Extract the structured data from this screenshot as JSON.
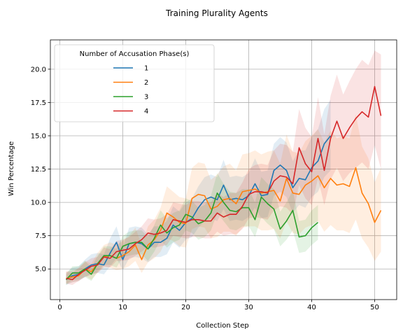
{
  "chart_data": {
    "type": "line",
    "title": "Training Plurality Agents",
    "xlabel": "Collection Step",
    "ylabel": "Win Percentage",
    "xlim": [
      -1.5,
      53.5
    ],
    "ylim": [
      2.7,
      22.2
    ],
    "xticks": [
      0,
      10,
      20,
      30,
      40,
      50
    ],
    "yticks": [
      5.0,
      7.5,
      10.0,
      12.5,
      15.0,
      17.5,
      20.0
    ],
    "xtick_labels": [
      "0",
      "10",
      "20",
      "30",
      "40",
      "50"
    ],
    "ytick_labels": [
      "5.0",
      "7.5",
      "10.0",
      "12.5",
      "15.0",
      "17.5",
      "20.0"
    ],
    "grid": true,
    "legend": {
      "title": "Number of Accusation Phase(s)",
      "placement": "top-left"
    },
    "series": [
      {
        "name": "1",
        "color": "#1f77b4",
        "x": [
          1,
          2,
          3,
          4,
          5,
          6,
          7,
          8,
          9,
          10,
          11,
          12,
          13,
          14,
          15,
          16,
          17,
          18,
          19,
          20,
          21,
          22,
          23,
          24,
          25,
          26,
          27,
          28,
          29,
          30,
          31,
          32,
          33,
          34,
          35,
          36,
          37,
          38,
          39,
          40,
          41,
          42,
          43
        ],
        "values": [
          4.2,
          4.5,
          4.6,
          5.0,
          5.3,
          5.4,
          5.3,
          6.2,
          7.0,
          5.7,
          6.9,
          7.0,
          6.9,
          6.5,
          7.0,
          7.0,
          7.3,
          8.3,
          7.9,
          8.5,
          8.8,
          9.6,
          10.2,
          10.4,
          10.2,
          11.3,
          10.2,
          10.3,
          10.2,
          10.5,
          11.4,
          10.5,
          10.6,
          12.4,
          12.8,
          12.4,
          11.1,
          11.8,
          11.7,
          12.6,
          13.1,
          14.4,
          15.0
        ],
        "lower": [
          3.8,
          4.0,
          4.1,
          4.4,
          4.6,
          4.7,
          4.6,
          5.2,
          5.8,
          4.9,
          5.8,
          5.9,
          5.8,
          5.5,
          5.9,
          5.9,
          6.1,
          7.0,
          6.6,
          7.2,
          7.4,
          8.1,
          8.6,
          8.8,
          8.6,
          9.5,
          8.6,
          8.7,
          8.6,
          8.9,
          9.6,
          8.8,
          8.9,
          10.5,
          10.8,
          10.4,
          9.2,
          9.8,
          9.6,
          10.4,
          10.8,
          11.9,
          12.4
        ],
        "upper": [
          4.7,
          5.1,
          5.2,
          5.7,
          6.1,
          6.2,
          6.1,
          7.3,
          8.2,
          6.6,
          8.1,
          8.2,
          8.1,
          7.6,
          8.2,
          8.2,
          8.6,
          9.7,
          9.3,
          10.0,
          10.3,
          11.2,
          11.9,
          12.1,
          11.9,
          13.2,
          11.9,
          12.0,
          11.9,
          12.2,
          13.3,
          12.3,
          12.4,
          14.4,
          14.9,
          14.5,
          13.1,
          13.9,
          13.9,
          14.9,
          15.5,
          17.0,
          17.7
        ]
      },
      {
        "name": "2",
        "color": "#ff7f0e",
        "x": [
          1,
          2,
          3,
          4,
          5,
          6,
          7,
          8,
          9,
          10,
          11,
          12,
          13,
          14,
          15,
          16,
          17,
          18,
          19,
          20,
          21,
          22,
          23,
          24,
          25,
          26,
          27,
          28,
          29,
          30,
          31,
          32,
          33,
          34,
          35,
          36,
          37,
          38,
          39,
          40,
          41,
          42,
          43,
          44,
          45,
          46,
          47,
          48,
          49,
          50,
          51
        ],
        "values": [
          4.3,
          4.4,
          4.5,
          5.0,
          4.8,
          5.4,
          5.9,
          6.0,
          5.8,
          6.0,
          6.3,
          6.8,
          5.7,
          6.8,
          7.2,
          7.9,
          9.2,
          8.9,
          8.5,
          8.4,
          10.3,
          10.6,
          10.5,
          9.5,
          9.7,
          10.2,
          10.3,
          9.9,
          10.8,
          10.9,
          11.0,
          10.7,
          10.8,
          10.9,
          10.1,
          11.8,
          10.7,
          10.6,
          11.3,
          11.6,
          12.0,
          11.1,
          11.8,
          11.3,
          11.4,
          11.2,
          12.6,
          10.7,
          9.9,
          8.5,
          9.4
        ],
        "lower": [
          3.9,
          4.0,
          4.1,
          4.5,
          4.2,
          4.7,
          5.1,
          5.1,
          4.9,
          5.0,
          5.2,
          5.6,
          4.7,
          5.5,
          5.8,
          6.3,
          7.3,
          7.1,
          6.7,
          6.6,
          8.0,
          8.2,
          8.1,
          7.3,
          7.4,
          7.8,
          7.8,
          7.5,
          8.1,
          8.2,
          8.2,
          7.9,
          7.9,
          8.0,
          7.3,
          8.6,
          7.7,
          7.6,
          8.1,
          8.3,
          8.6,
          7.8,
          8.3,
          7.9,
          7.9,
          7.7,
          8.7,
          7.3,
          6.6,
          5.6,
          6.3
        ],
        "upper": [
          4.8,
          4.9,
          5.0,
          5.6,
          5.4,
          6.2,
          6.8,
          7.0,
          6.8,
          7.1,
          7.5,
          8.1,
          6.8,
          8.2,
          8.7,
          9.6,
          11.2,
          10.8,
          10.4,
          10.3,
          12.6,
          13.0,
          12.9,
          11.7,
          12.1,
          12.7,
          12.9,
          12.4,
          13.6,
          13.7,
          13.9,
          13.6,
          13.8,
          13.9,
          12.9,
          15.1,
          13.8,
          13.7,
          14.6,
          15.0,
          15.5,
          14.5,
          15.4,
          14.8,
          15.0,
          14.8,
          16.6,
          14.2,
          13.3,
          11.5,
          12.6
        ]
      },
      {
        "name": "3",
        "color": "#2ca02c",
        "x": [
          1,
          2,
          3,
          4,
          5,
          6,
          7,
          8,
          9,
          10,
          11,
          12,
          13,
          14,
          15,
          16,
          17,
          18,
          19,
          20,
          21,
          22,
          23,
          24,
          25,
          26,
          27,
          28,
          29,
          30,
          31,
          32,
          33,
          34,
          35,
          36,
          37,
          38,
          39,
          40,
          41
        ],
        "values": [
          4.2,
          4.7,
          4.7,
          5.0,
          4.6,
          5.4,
          6.0,
          6.0,
          5.8,
          6.7,
          6.9,
          7.0,
          7.0,
          6.5,
          7.3,
          8.3,
          7.7,
          8.1,
          8.3,
          9.1,
          8.9,
          8.4,
          8.6,
          9.2,
          10.7,
          10.0,
          9.4,
          9.3,
          9.6,
          9.6,
          8.7,
          10.4,
          9.9,
          9.5,
          8.0,
          8.6,
          9.4,
          7.4,
          7.5,
          8.1,
          8.5
        ],
        "lower": [
          3.8,
          4.2,
          4.2,
          4.4,
          4.1,
          4.8,
          5.3,
          5.3,
          5.1,
          5.9,
          6.0,
          6.1,
          6.1,
          5.6,
          6.3,
          7.2,
          6.6,
          7.0,
          7.2,
          7.9,
          7.7,
          7.2,
          7.4,
          7.9,
          9.2,
          8.6,
          8.0,
          7.9,
          8.2,
          8.2,
          7.4,
          8.9,
          8.4,
          8.0,
          6.7,
          7.2,
          7.9,
          6.2,
          6.3,
          6.8,
          7.2
        ],
        "upper": [
          4.6,
          5.2,
          5.2,
          5.6,
          5.1,
          6.0,
          6.7,
          6.7,
          6.5,
          7.5,
          7.8,
          7.9,
          7.9,
          7.4,
          8.3,
          9.4,
          8.8,
          9.2,
          9.4,
          10.3,
          10.1,
          9.6,
          9.8,
          10.5,
          12.2,
          11.4,
          10.8,
          10.7,
          11.0,
          11.0,
          10.0,
          11.9,
          11.4,
          11.0,
          9.3,
          10.0,
          10.9,
          8.6,
          8.7,
          9.4,
          9.8
        ]
      },
      {
        "name": "4",
        "color": "#d62728",
        "x": [
          1,
          2,
          3,
          4,
          5,
          6,
          7,
          8,
          9,
          10,
          11,
          12,
          13,
          14,
          15,
          16,
          17,
          18,
          19,
          20,
          21,
          22,
          23,
          24,
          25,
          26,
          27,
          28,
          29,
          30,
          31,
          32,
          33,
          34,
          35,
          36,
          37,
          38,
          39,
          40,
          41,
          42,
          43,
          44,
          45,
          46,
          47,
          48,
          49,
          50,
          51
        ],
        "values": [
          4.3,
          4.2,
          4.6,
          4.9,
          5.2,
          5.3,
          5.9,
          5.8,
          6.3,
          6.4,
          6.5,
          6.9,
          7.2,
          7.7,
          7.6,
          7.7,
          7.9,
          8.7,
          8.6,
          8.5,
          8.7,
          8.7,
          8.6,
          8.6,
          9.2,
          8.9,
          9.1,
          9.1,
          9.7,
          10.6,
          10.8,
          10.8,
          10.7,
          11.6,
          12.0,
          11.9,
          11.4,
          14.1,
          12.9,
          12.3,
          14.8,
          12.4,
          14.8,
          16.1,
          14.8,
          15.6,
          16.3,
          16.8,
          16.4,
          18.7,
          16.5
        ],
        "lower": [
          3.9,
          3.8,
          4.1,
          4.4,
          4.6,
          4.7,
          5.2,
          5.1,
          5.6,
          5.6,
          5.7,
          6.0,
          6.3,
          6.7,
          6.6,
          6.7,
          6.8,
          7.5,
          7.4,
          7.3,
          7.4,
          7.4,
          7.3,
          7.3,
          7.8,
          7.5,
          7.6,
          7.6,
          8.0,
          8.8,
          8.9,
          8.8,
          8.7,
          9.4,
          9.7,
          9.6,
          9.1,
          11.3,
          10.3,
          9.8,
          11.8,
          9.8,
          11.7,
          12.6,
          11.6,
          12.2,
          12.6,
          13.0,
          12.5,
          14.3,
          12.5
        ],
        "upper": [
          4.8,
          4.7,
          5.1,
          5.5,
          5.8,
          5.9,
          6.6,
          6.5,
          7.1,
          7.2,
          7.4,
          7.8,
          8.2,
          8.8,
          8.7,
          8.8,
          9.1,
          10.0,
          9.9,
          9.8,
          10.1,
          10.1,
          10.0,
          10.0,
          10.7,
          10.4,
          10.7,
          10.7,
          11.5,
          12.5,
          12.8,
          12.9,
          12.8,
          13.9,
          14.4,
          14.3,
          13.8,
          17.0,
          15.6,
          14.9,
          17.9,
          15.1,
          18.0,
          19.6,
          18.1,
          19.1,
          20.0,
          20.7,
          20.3,
          21.4,
          21.1
        ]
      }
    ]
  }
}
